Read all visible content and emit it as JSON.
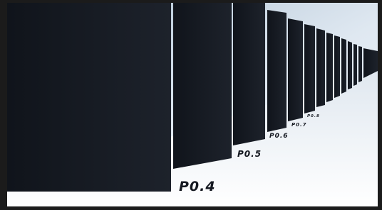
{
  "labels": [
    "P0.4",
    "P0.5",
    "P0.6",
    "P0.7",
    "P0.8"
  ]
}
